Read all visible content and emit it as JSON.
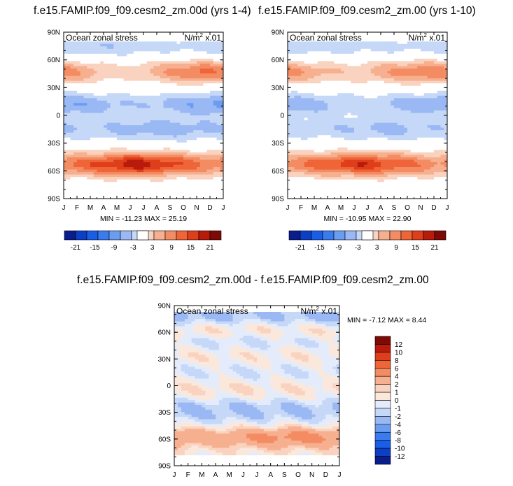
{
  "colors": {
    "blue_red_14": [
      "#0a1d8c",
      "#0d3fc6",
      "#1a5ee8",
      "#3a7cf0",
      "#6a9cf2",
      "#9ab8f4",
      "#c6d8f7",
      "#f9d3bf",
      "#f7b08f",
      "#f48c63",
      "#ef6538",
      "#df3e1a",
      "#b81a0b",
      "#7e0a05"
    ],
    "diff_12": [
      "#0a1d8c",
      "#0d3fc6",
      "#1a5ee8",
      "#3a7cf0",
      "#6a9cf2",
      "#9ab8f4",
      "#c6d8f7",
      "#e4ecfb",
      "#fbe8dc",
      "#f9d3bf",
      "#f7b08f",
      "#f48c63",
      "#ef6538",
      "#df3e1a",
      "#b81a0b",
      "#7e0a05"
    ]
  },
  "chart_data": [
    {
      "type": "heatmap",
      "title": "f.e15.FAMIP.f09_f09.cesm2_zm.00d (yrs 1-4)",
      "left_label": "Ocean zonal stress",
      "units_main": "N/m",
      "units_sup": "2",
      "units_tail": " x.01",
      "x_ticks": [
        "J",
        "F",
        "M",
        "A",
        "M",
        "J",
        "J",
        "A",
        "S",
        "O",
        "N",
        "D",
        "J"
      ],
      "y_ticks": [
        "90N",
        "60N",
        "30N",
        "0",
        "30S",
        "60S",
        "90S"
      ],
      "ylim": [
        -90,
        90
      ],
      "min_max": "MIN = -11.23 MAX =  25.19",
      "colorbar_labels": [
        "-21",
        "-15",
        "-9",
        "-3",
        "3",
        "9",
        "15",
        "21"
      ],
      "colorbar_range": [
        -21,
        21
      ],
      "bands": [
        {
          "lat": 75,
          "value": -6,
          "peak_month": 2,
          "amp": 3
        },
        {
          "lat": 47,
          "value": 13,
          "peak_month": 10.5,
          "amp": 6
        },
        {
          "lat": 12,
          "value": -10,
          "peak_month": 11.5,
          "amp": 4
        },
        {
          "lat": -15,
          "value": -8,
          "peak_month": 7.5,
          "amp": 3
        },
        {
          "lat": -53,
          "value": 20,
          "peak_month": 5.5,
          "amp": 4
        }
      ]
    },
    {
      "type": "heatmap",
      "title": "f.e15.FAMIP.f09_f09.cesm2_zm.00 (yrs 1-10)",
      "left_label": "Ocean zonal stress",
      "units_main": "N/m",
      "units_sup": "2",
      "units_tail": " x.01",
      "x_ticks": [
        "J",
        "F",
        "M",
        "A",
        "M",
        "J",
        "J",
        "A",
        "S",
        "O",
        "N",
        "D",
        "J"
      ],
      "y_ticks": [
        "90N",
        "60N",
        "30N",
        "0",
        "30S",
        "60S",
        "90S"
      ],
      "ylim": [
        -90,
        90
      ],
      "min_max": "MIN = -10.95 MAX =  22.90",
      "colorbar_labels": [
        "-21",
        "-15",
        "-9",
        "-3",
        "3",
        "9",
        "15",
        "21"
      ],
      "colorbar_range": [
        -21,
        21
      ],
      "bands": [
        {
          "lat": 75,
          "value": -5,
          "peak_month": 2,
          "amp": 2
        },
        {
          "lat": 47,
          "value": 12,
          "peak_month": 10.5,
          "amp": 5
        },
        {
          "lat": 12,
          "value": -9,
          "peak_month": 11.5,
          "amp": 4
        },
        {
          "lat": -15,
          "value": -7,
          "peak_month": 7.5,
          "amp": 3
        },
        {
          "lat": -53,
          "value": 18,
          "peak_month": 5.5,
          "amp": 4
        }
      ]
    },
    {
      "type": "heatmap",
      "title": "f.e15.FAMIP.f09_f09.cesm2_zm.00d - f.e15.FAMIP.f09_f09.cesm2_zm.00",
      "left_label": "Ocean zonal stress",
      "units_main": "N/m",
      "units_sup": "2",
      "units_tail": " x.01",
      "x_ticks": [
        "J",
        "F",
        "M",
        "A",
        "M",
        "J",
        "J",
        "A",
        "S",
        "O",
        "N",
        "D",
        "J"
      ],
      "y_ticks": [
        "90N",
        "60N",
        "30N",
        "0",
        "30S",
        "60S",
        "90S"
      ],
      "ylim": [
        -90,
        90
      ],
      "min_max": "MIN =  -7.12 MAX =   8.44",
      "colorbar_labels": [
        "12",
        "10",
        "8",
        "6",
        "4",
        "2",
        "1",
        "0",
        "-1",
        "-2",
        "-4",
        "-6",
        "-8",
        "-10",
        "-12"
      ],
      "colorbar_range": [
        -12,
        12
      ],
      "bands": [
        {
          "lat": 78,
          "value": -3,
          "peak_month": 0.5,
          "amp": 2
        },
        {
          "lat": 62,
          "value": 2,
          "peak_month": 2,
          "amp": 2
        },
        {
          "lat": 50,
          "value": -2,
          "peak_month": 3.5,
          "amp": 2
        },
        {
          "lat": 35,
          "value": 1,
          "peak_month": 1,
          "amp": 1
        },
        {
          "lat": 15,
          "value": -1,
          "peak_month": 6,
          "amp": 1
        },
        {
          "lat": -5,
          "value": 1,
          "peak_month": 3,
          "amp": 1
        },
        {
          "lat": -25,
          "value": -2,
          "peak_month": 4,
          "amp": 1
        },
        {
          "lat": -40,
          "value": -1,
          "peak_month": 2,
          "amp": 1
        },
        {
          "lat": -58,
          "value": 5,
          "peak_month": 8.5,
          "amp": 3
        }
      ]
    }
  ]
}
